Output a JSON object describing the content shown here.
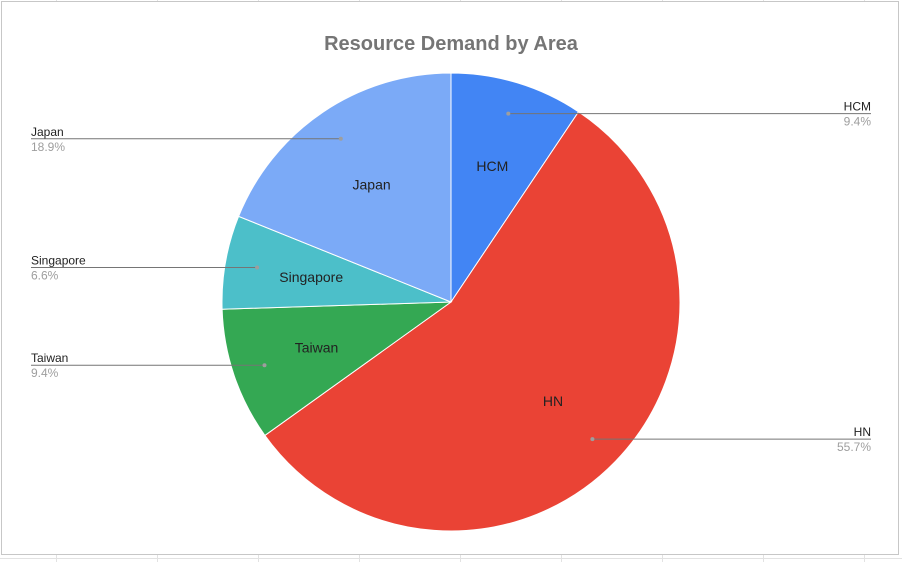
{
  "chart_data": {
    "type": "pie",
    "title": "Resource Demand by Area",
    "slices": [
      {
        "label": "HCM",
        "value": 9.4,
        "percent_label": "9.4%",
        "color": "#4285f4",
        "callout_side": "right"
      },
      {
        "label": "HN",
        "value": 55.7,
        "percent_label": "55.7%",
        "color": "#ea4335",
        "callout_side": "right"
      },
      {
        "label": "Taiwan",
        "value": 9.4,
        "percent_label": "9.4%",
        "color": "#34a853",
        "callout_side": "left"
      },
      {
        "label": "Singapore",
        "value": 6.6,
        "percent_label": "6.6%",
        "color": "#4cbfc9",
        "callout_side": "left"
      },
      {
        "label": "Japan",
        "value": 18.9,
        "percent_label": "18.9%",
        "color": "#7baaf7",
        "callout_side": "left"
      }
    ],
    "start_angle_deg": 0,
    "direction": "clockwise",
    "legend": "callouts"
  }
}
